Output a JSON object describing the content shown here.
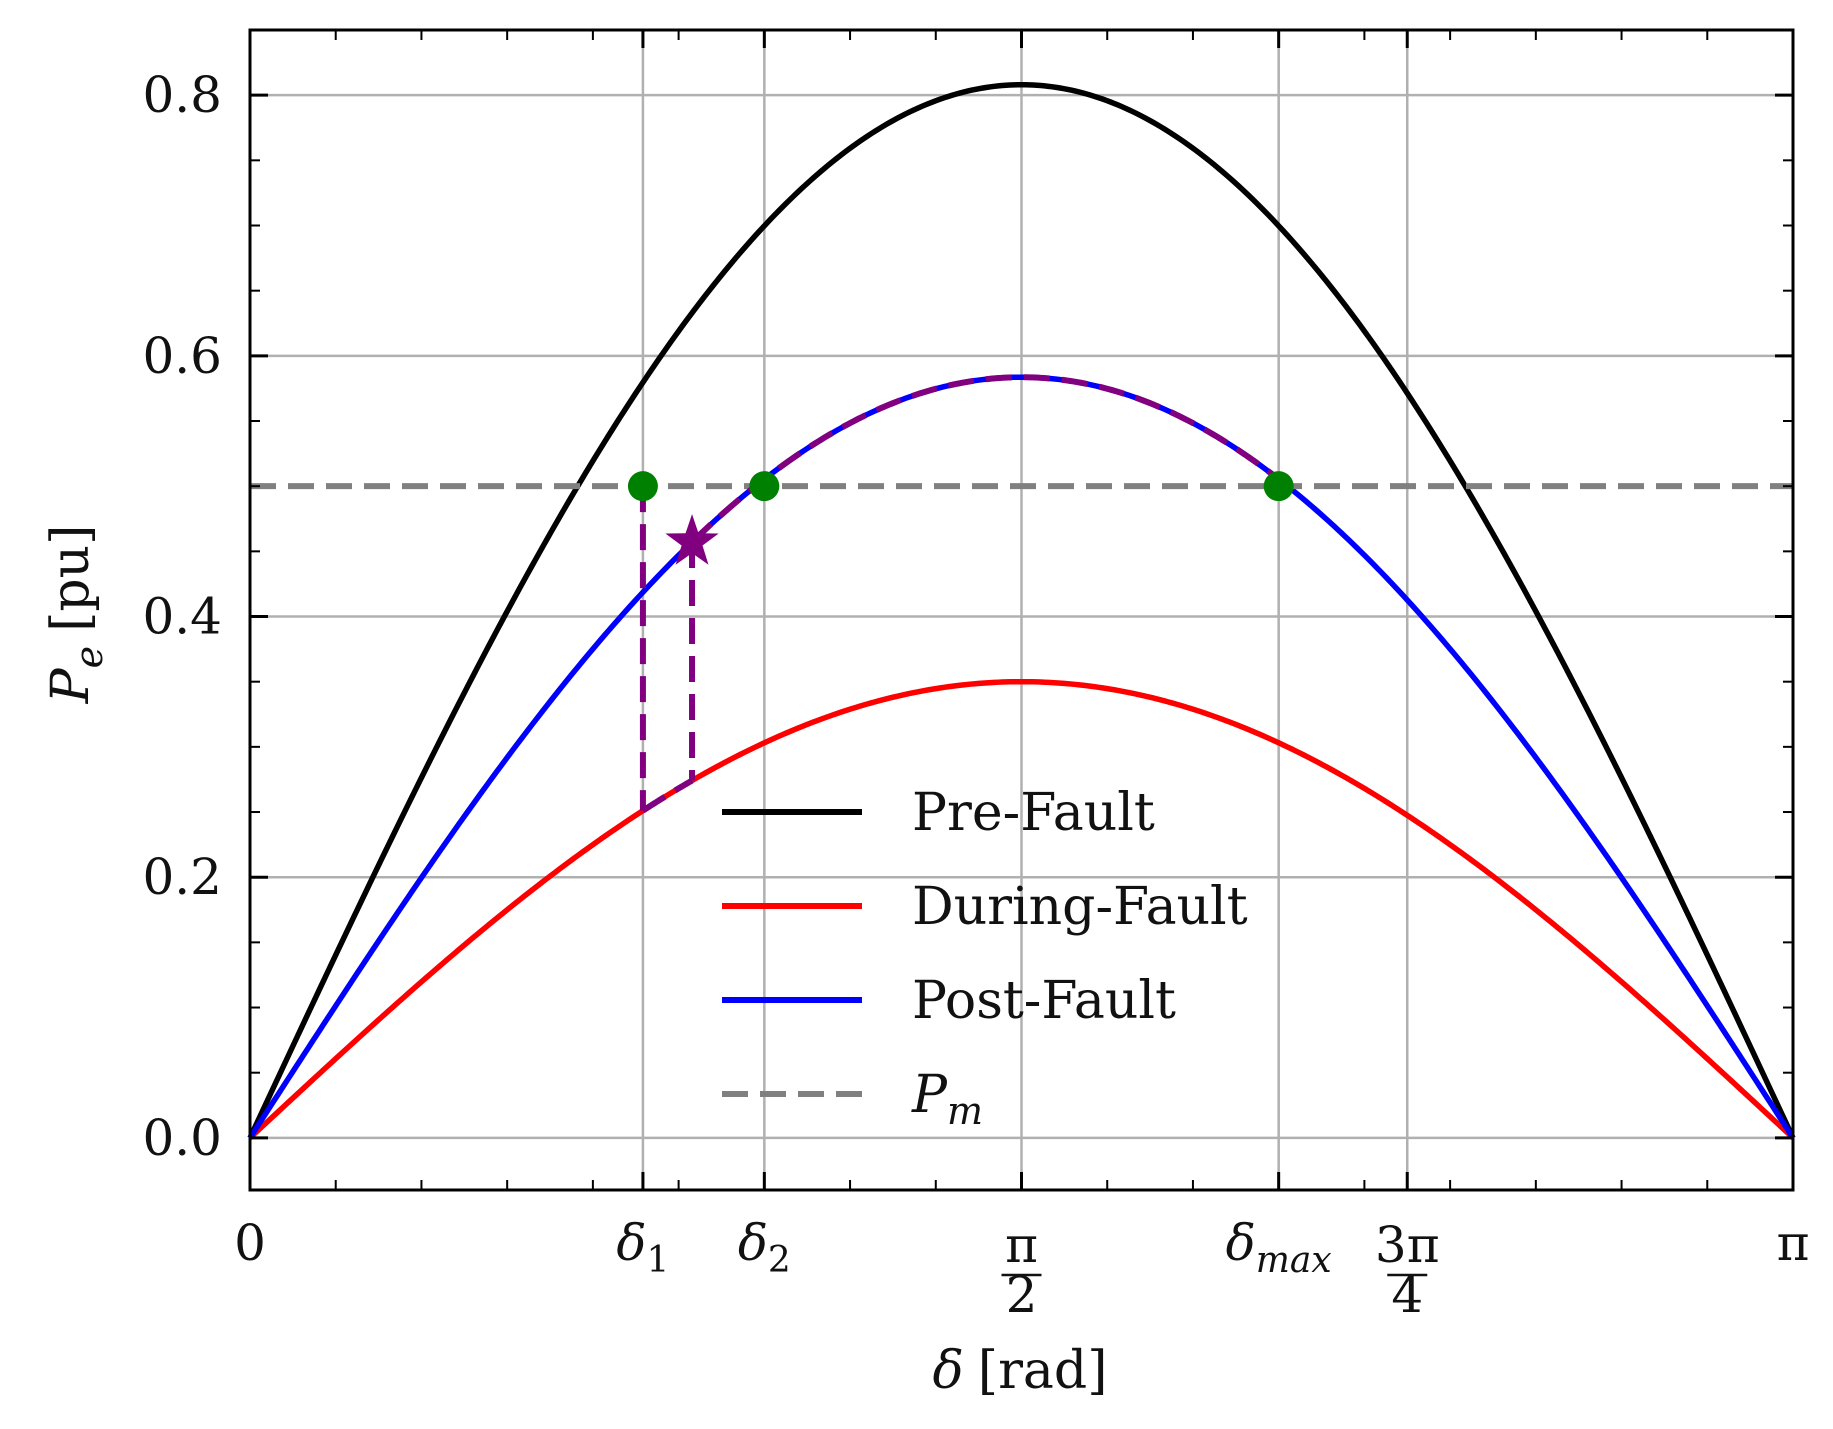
{
  "chart_data": {
    "type": "line",
    "xlabel": {
      "symbol": "δ",
      "unit": "[rad]"
    },
    "ylabel": {
      "symbol": "P",
      "subscript": "e",
      "unit": "[pu]"
    },
    "xlim": [
      0,
      3.14159265
    ],
    "ylim": [
      -0.04,
      0.85
    ],
    "grid": true,
    "legend_position": "lower-center",
    "x_ticks": [
      {
        "value": 0,
        "label": "0"
      },
      {
        "value": 0.8,
        "label": "δ",
        "sub": "1"
      },
      {
        "value": 1.0472,
        "label": "δ",
        "sub": "2"
      },
      {
        "value": 1.5708,
        "frac_num": "π",
        "frac_den": "2"
      },
      {
        "value": 2.0944,
        "label": "δ",
        "sub": "max"
      },
      {
        "value": 2.3562,
        "frac_num": "3π",
        "frac_den": "4"
      },
      {
        "value": 3.14159265,
        "label": "π"
      }
    ],
    "y_ticks": [
      {
        "value": 0.0,
        "label": "0.0"
      },
      {
        "value": 0.2,
        "label": "0.2"
      },
      {
        "value": 0.4,
        "label": "0.4"
      },
      {
        "value": 0.6,
        "label": "0.6"
      },
      {
        "value": 0.8,
        "label": "0.8"
      }
    ],
    "series": [
      {
        "name": "Pre-Fault",
        "kind": "sine",
        "amplitude": 0.808,
        "color": "#000000",
        "dash": "solid"
      },
      {
        "name": "During-Fault",
        "kind": "sine",
        "amplitude": 0.35,
        "color": "#ff0000",
        "dash": "solid"
      },
      {
        "name": "Post-Fault",
        "kind": "sine",
        "amplitude": 0.5836,
        "color": "#0000ff",
        "dash": "solid"
      },
      {
        "name": "P",
        "name_sub": "m",
        "kind": "constant",
        "value": 0.5,
        "color": "#808080",
        "dash": "dashed"
      }
    ],
    "swing_path": {
      "color": "#800080",
      "delta_1": 0.8,
      "delta_clear": 0.9,
      "delta_2": 1.0472,
      "delta_max": 2.0944,
      "during_amplitude": 0.35,
      "post_amplitude": 0.5836
    },
    "equilibrium_points": [
      {
        "x": 0.8,
        "y": 0.5
      },
      {
        "x": 1.0472,
        "y": 0.5
      },
      {
        "x": 2.0944,
        "y": 0.5
      }
    ],
    "star_marker": {
      "x": 0.9,
      "y": 0.4571,
      "color": "#800080"
    },
    "colors": {
      "grid": "#b0b0b0",
      "axes": "#000000",
      "points": "#008000"
    }
  }
}
